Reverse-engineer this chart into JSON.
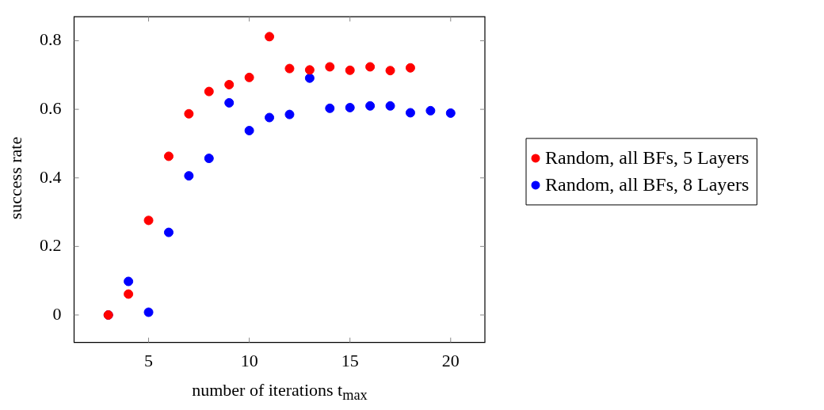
{
  "chart_data": {
    "type": "scatter",
    "xlabel": "number of iterations t$_{max}$",
    "ylabel": "success rate",
    "xlim": [
      1.3,
      21.7
    ],
    "ylim": [
      -0.08,
      0.87
    ],
    "xticks": [
      5,
      10,
      15,
      20
    ],
    "yticks": [
      0,
      0.2,
      0.4,
      0.6,
      0.8
    ],
    "legend": "right",
    "marker": "circle",
    "series": [
      {
        "name": "Random, all BFs, 5 Layers",
        "color": "#ff0000",
        "x": [
          3,
          4,
          5,
          6,
          7,
          8,
          9,
          10,
          11,
          12,
          13,
          14,
          15,
          16,
          17,
          18
        ],
        "values": [
          0,
          0.061,
          0.276,
          0.463,
          0.587,
          0.652,
          0.672,
          0.693,
          0.812,
          0.719,
          0.715,
          0.724,
          0.714,
          0.724,
          0.713,
          0.721
        ]
      },
      {
        "name": "Random, all BFs, 8 Layers",
        "color": "#0000ff",
        "x": [
          3,
          4,
          5,
          6,
          7,
          8,
          9,
          10,
          11,
          12,
          13,
          14,
          15,
          16,
          17,
          18,
          19,
          20
        ],
        "values": [
          0,
          0.098,
          0.008,
          0.241,
          0.406,
          0.457,
          0.619,
          0.538,
          0.576,
          0.585,
          0.691,
          0.603,
          0.605,
          0.61,
          0.61,
          0.59,
          0.596,
          0.589
        ]
      }
    ]
  }
}
